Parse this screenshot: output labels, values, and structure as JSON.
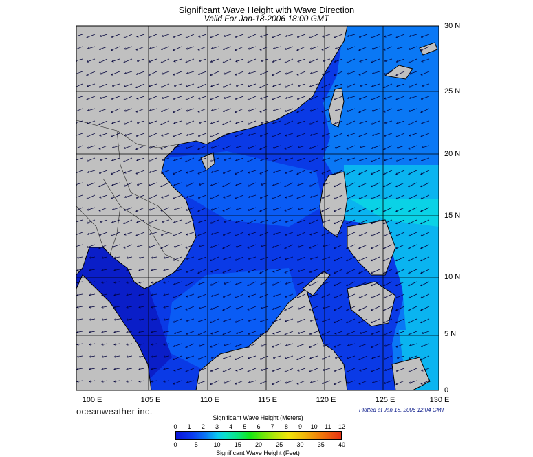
{
  "title": "Significant Wave Height with Wave Direction",
  "subtitle": "Valid For Jan-18-2006 18:00 GMT",
  "latitude_labels": [
    "30 N",
    "25 N",
    "20 N",
    "15 N",
    "10 N",
    "5 N",
    "0"
  ],
  "longitude_labels": [
    "100 E",
    "105 E",
    "110 E",
    "115 E",
    "120 E",
    "125 E",
    "130 E"
  ],
  "brand": "oceanweather inc.",
  "plotted": "Plotted at Jan 18, 2006 12:04 GMT",
  "colorbar": {
    "meters_title": "Significant Wave Height (Meters)",
    "meters_ticks": [
      "0",
      "1",
      "2",
      "3",
      "4",
      "5",
      "6",
      "7",
      "8",
      "9",
      "10",
      "11",
      "12"
    ],
    "feet_ticks": [
      "0",
      "5",
      "10",
      "15",
      "20",
      "25",
      "30",
      "35",
      "40"
    ],
    "feet_title": "Significant Wave Height (Feet)"
  },
  "colors": {
    "land": "#c0c0c0",
    "sea_low": "#0a2ee0",
    "sea_mid": "#0a5cf5",
    "sea_high": "#0ab4f0",
    "sea_peak": "#0ad2e6",
    "coast": "#000000"
  },
  "map": {
    "lon_range": [
      99,
      130
    ],
    "lat_range": [
      0,
      30
    ]
  }
}
